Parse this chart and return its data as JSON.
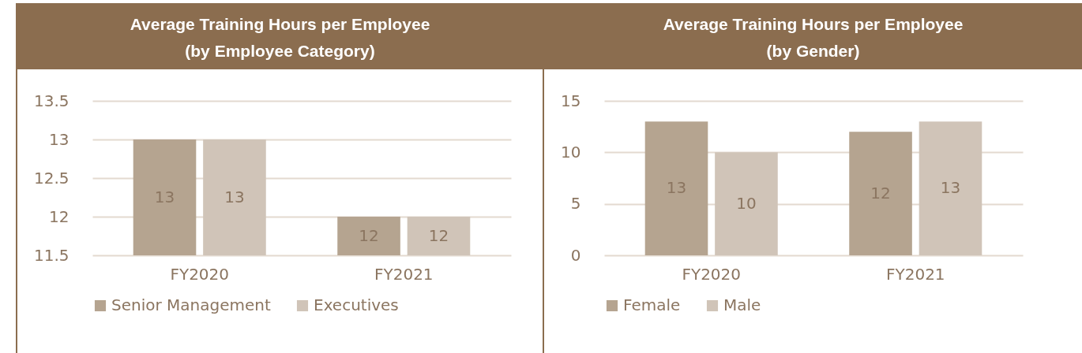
{
  "chart_data": [
    {
      "type": "bar",
      "title": "Average Training Hours per Employee",
      "subtitle": "(by Employee Category)",
      "categories": [
        "FY2020",
        "FY2021"
      ],
      "series": [
        {
          "name": "Senior Management",
          "color": "#b5a490",
          "values": [
            13,
            12
          ]
        },
        {
          "name": "Executives",
          "color": "#d0c4b8",
          "values": [
            13,
            12
          ]
        }
      ],
      "ylim": [
        11.5,
        13.5
      ],
      "yticks": [
        11.5,
        12,
        12.5,
        13,
        13.5
      ],
      "grid": "y",
      "legend": "bottom",
      "data_labels": true
    },
    {
      "type": "bar",
      "title": "Average Training Hours per Employee",
      "subtitle": "(by Gender)",
      "categories": [
        "FY2020",
        "FY2021"
      ],
      "series": [
        {
          "name": "Female",
          "color": "#b5a490",
          "values": [
            13,
            12
          ]
        },
        {
          "name": "Male",
          "color": "#d0c4b8",
          "values": [
            10,
            13
          ]
        }
      ],
      "ylim": [
        0,
        15
      ],
      "yticks": [
        0,
        5,
        10,
        15
      ],
      "grid": "y",
      "legend": "bottom",
      "data_labels": true
    }
  ]
}
